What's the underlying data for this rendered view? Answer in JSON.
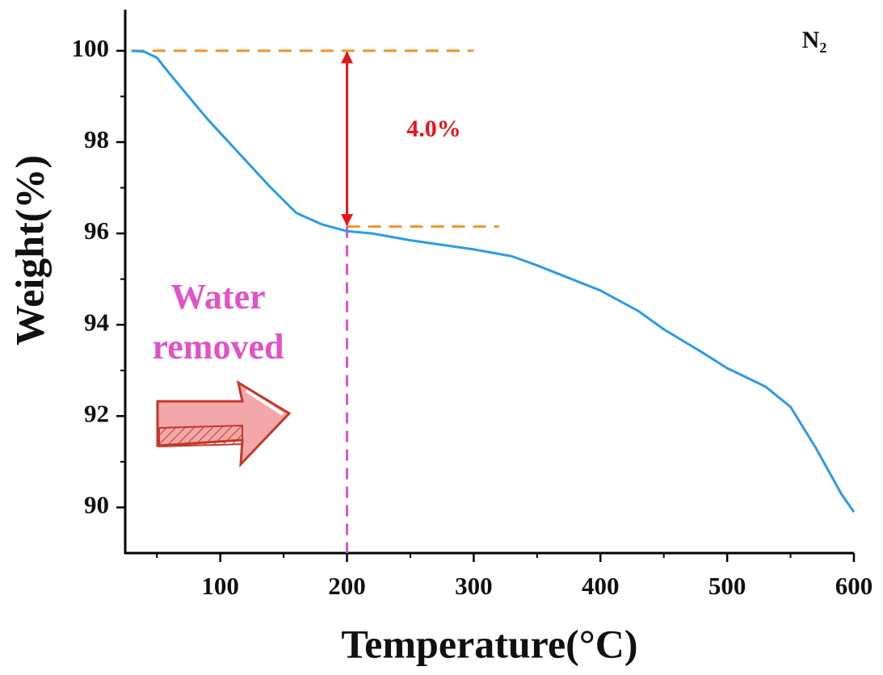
{
  "chart_data": {
    "type": "line",
    "x": [
      30,
      40,
      50,
      60,
      75,
      90,
      100,
      120,
      140,
      160,
      180,
      200,
      220,
      250,
      300,
      330,
      350,
      400,
      430,
      450,
      480,
      500,
      530,
      550,
      570,
      590,
      600
    ],
    "series": [
      {
        "color": "#2e9be6",
        "values": [
          100.0,
          99.98,
          99.85,
          99.5,
          99.0,
          98.5,
          98.2,
          97.6,
          97.0,
          96.45,
          96.2,
          96.05,
          96.0,
          95.85,
          95.65,
          95.5,
          95.3,
          94.75,
          94.3,
          93.9,
          93.4,
          93.05,
          92.65,
          92.2,
          91.3,
          90.3,
          89.9
        ]
      }
    ],
    "xlabel": "Temperature(°C)",
    "ylabel": "Weight(%)",
    "xlim": [
      25,
      600
    ],
    "ylim": [
      89,
      100.9
    ],
    "xticks": [
      100,
      200,
      300,
      400,
      500,
      600
    ],
    "yticks": [
      90,
      92,
      94,
      96,
      98,
      100
    ],
    "xminorticks": [
      50,
      150,
      250,
      350,
      450,
      550
    ],
    "yminorticks": [
      91,
      93,
      95,
      97,
      99
    ],
    "annotations": {
      "atmosphere": "N₂",
      "loss_label": "4.0%",
      "region_label": [
        "Water",
        "removed"
      ],
      "hlines": [
        {
          "y": 100,
          "x": [
            30,
            300
          ],
          "color": "#f0932b"
        },
        {
          "y": 96.15,
          "x": [
            200,
            320
          ],
          "color": "#f0932b"
        }
      ],
      "vline": {
        "x": 200,
        "color": "#e052c8"
      },
      "arrow": {
        "x": 200,
        "y": [
          100,
          96.15
        ],
        "color": "#e8141c"
      }
    }
  }
}
